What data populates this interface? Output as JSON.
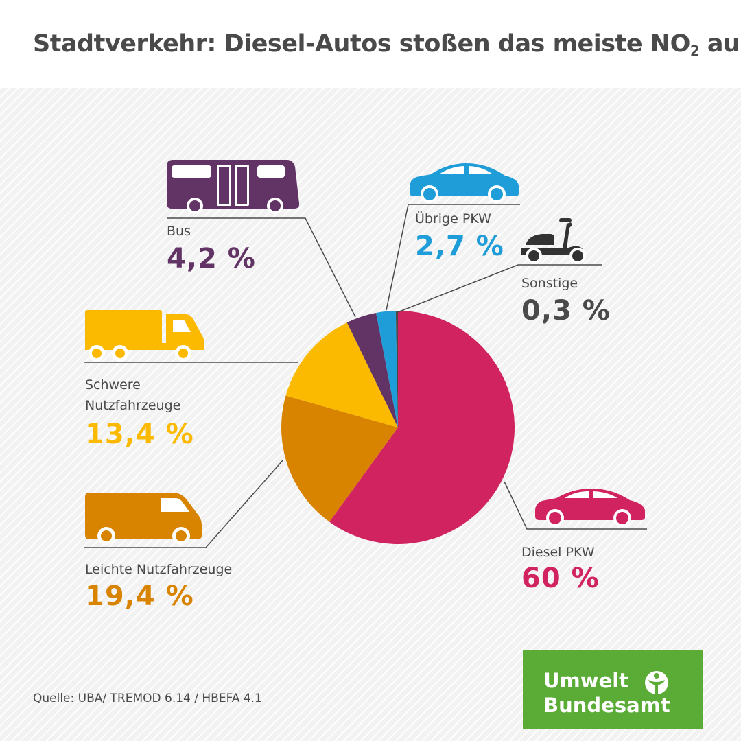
{
  "title": "Stadtverkehr: Diesel-Autos stoßen das meiste NO",
  "title_subscript": "2",
  "title_suffix": " aus",
  "source": "Quelle: UBA/ TREMOD 6.14 / HBEFA 4.1",
  "logo": {
    "line1": "Umwelt",
    "line2": "Bundesamt",
    "icon": "person-tree-icon"
  },
  "chart_data": {
    "type": "pie",
    "start_angle_deg": 0,
    "direction": "clockwise",
    "slices": [
      {
        "label": "Diesel PKW",
        "value": 60,
        "display": "60 %",
        "color": "#d0235f",
        "icon": "car-icon"
      },
      {
        "label": "Leichte Nutzfahrzeuge",
        "value": 19.4,
        "display": "19,4 %",
        "color": "#d88400",
        "icon": "van-icon"
      },
      {
        "label": "Schwere Nutzfahrzeuge",
        "display_lines": [
          "Schwere",
          "Nutzfahrzeuge"
        ],
        "value": 13.4,
        "display": "13,4 %",
        "color": "#fbb900",
        "icon": "truck-icon"
      },
      {
        "label": "Bus",
        "value": 4.2,
        "display": "4,2 %",
        "color": "#623466",
        "icon": "bus-icon"
      },
      {
        "label": "Übrige PKW",
        "value": 2.7,
        "display": "2,7 %",
        "color": "#1e9dd8",
        "icon": "car-icon"
      },
      {
        "label": "Sonstige",
        "value": 0.3,
        "display": "0,3 %",
        "color": "#4a4a4a",
        "icon": "scooter-icon"
      }
    ]
  }
}
